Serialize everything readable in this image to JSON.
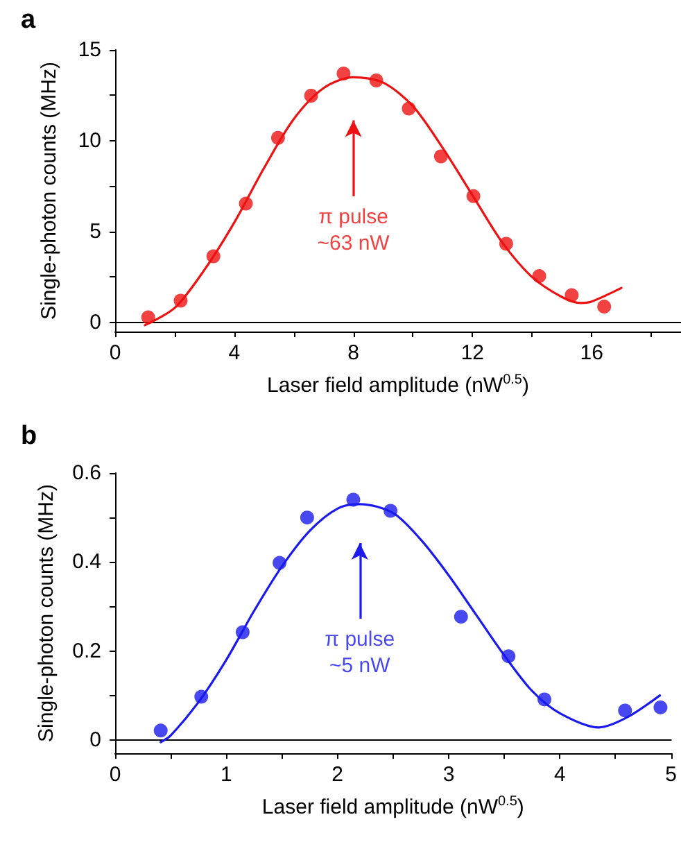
{
  "chart_data": [
    {
      "type": "scatter",
      "title": "a",
      "xlabel": "Laser field amplitude (nW$^{0.5}$)",
      "ylabel": "Single-photon counts (MHz)",
      "xlim": [
        0,
        19
      ],
      "xticks": [
        0,
        {
          "value": 2,
          "label": null
        },
        4,
        {
          "value": 6,
          "label": null
        },
        8,
        {
          "value": 10,
          "label": null
        },
        12,
        {
          "value": 14,
          "label": null
        },
        16,
        {
          "value": 18,
          "label": null
        }
      ],
      "ylim": [
        -0.5,
        15
      ],
      "yticks": [
        0,
        {
          "value": 2.5,
          "label": null
        },
        5,
        {
          "value": 7.5,
          "label": null
        },
        10,
        {
          "value": 12.5,
          "label": null
        },
        15
      ],
      "series": [
        {
          "marker": "circle",
          "color": "#ee1111",
          "x": [
            1.11,
            2.2,
            3.3,
            4.39,
            5.47,
            6.58,
            7.67,
            8.77,
            9.86,
            10.94,
            12.03,
            13.13,
            14.24,
            15.33,
            16.42
          ],
          "values": [
            0.28,
            1.2,
            3.64,
            6.54,
            10.16,
            12.48,
            13.7,
            13.32,
            11.77,
            9.14,
            6.95,
            4.33,
            2.55,
            1.5,
            0.87
          ]
        },
        {
          "type": "line",
          "marker": "none",
          "color": "#ee1111",
          "x": [
            1,
            2,
            3,
            4,
            5,
            6,
            7,
            8,
            9,
            10,
            11,
            12,
            13,
            14,
            15,
            15.64,
            16,
            17
          ],
          "values": [
            -0.15,
            0.8,
            2.9,
            5.5,
            8.5,
            11.2,
            12.9,
            13.5,
            13.2,
            11.9,
            9.6,
            7.0,
            4.4,
            2.5,
            1.4,
            1.07,
            1.15,
            1.9
          ]
        }
      ],
      "annotations": [
        "π pulse\n~63 nW"
      ]
    },
    {
      "type": "scatter",
      "title": "b",
      "xlabel": "Laser field amplitude (nW$^{0.5}$)",
      "ylabel": "Single-photon counts (MHz)",
      "xlim": [
        0,
        5
      ],
      "xticks": [
        0,
        {
          "value": 0.5,
          "label": null
        },
        1,
        {
          "value": 1.5,
          "label": null
        },
        2,
        {
          "value": 2.5,
          "label": null
        },
        3,
        {
          "value": 3.5,
          "label": null
        },
        4,
        {
          "value": 4.5,
          "label": null
        },
        5
      ],
      "ylim": [
        -0.03,
        0.6
      ],
      "yticks": [
        0,
        {
          "value": 0.1,
          "label": null
        },
        0.2,
        {
          "value": 0.3,
          "label": null
        },
        0.4,
        {
          "value": 0.5,
          "label": null
        },
        0.6
      ],
      "series": [
        {
          "marker": "circle",
          "color": "#1a1aee",
          "x": [
            0.41,
            0.775,
            1.147,
            1.479,
            1.727,
            2.142,
            2.477,
            3.111,
            3.538,
            3.861,
            4.586,
            4.905
          ],
          "values": [
            0.021,
            0.097,
            0.242,
            0.398,
            0.5,
            0.54,
            0.515,
            0.277,
            0.188,
            0.091,
            0.066,
            0.073
          ]
        },
        {
          "type": "line",
          "marker": "none",
          "color": "#1a1aee",
          "x": [
            0.41,
            0.5,
            0.75,
            1.0,
            1.25,
            1.5,
            1.75,
            2.0,
            2.2,
            2.5,
            2.75,
            3.0,
            3.25,
            3.5,
            3.75,
            4.0,
            4.35,
            4.6,
            4.9
          ],
          "values": [
            -0.005,
            0.01,
            0.085,
            0.18,
            0.29,
            0.39,
            0.47,
            0.52,
            0.53,
            0.51,
            0.45,
            0.37,
            0.28,
            0.19,
            0.11,
            0.06,
            0.028,
            0.05,
            0.1
          ]
        }
      ],
      "annotations": [
        "π pulse\n~5 nW"
      ]
    }
  ]
}
